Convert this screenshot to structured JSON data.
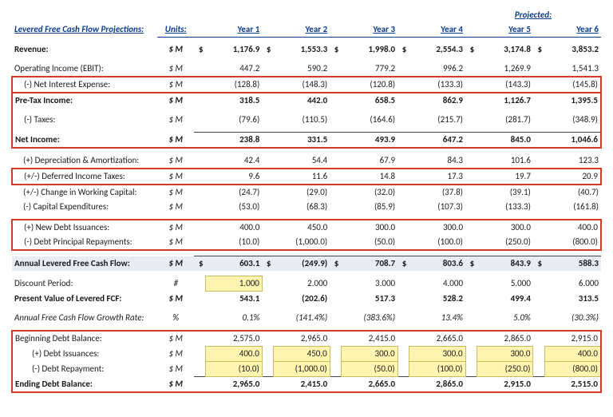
{
  "header": {
    "title": "Levered Free Cash Flow Projections:",
    "units_label": "Units:",
    "projected_label": "Projected:",
    "years": [
      "Year 1",
      "Year 2",
      "Year 3",
      "Year 4",
      "Year 5",
      "Year 6"
    ]
  },
  "rows": {
    "revenue": {
      "label": "Revenue:",
      "units": "$ M",
      "v": [
        "1,176.9",
        "1,553.3",
        "1,998.0",
        "2,554.3",
        "3,174.8",
        "3,853.2"
      ]
    },
    "ebit": {
      "label": "Operating Income (EBIT):",
      "units": "$ M",
      "v": [
        "447.2",
        "590.2",
        "779.2",
        "996.2",
        "1,269.9",
        "1,541.3"
      ]
    },
    "intexp": {
      "label": "(-) Net Interest Expense:",
      "units": "$ M",
      "v": [
        "(128.8)",
        "(148.3)",
        "(120.8)",
        "(133.3)",
        "(143.3)",
        "(145.8)"
      ]
    },
    "pretax": {
      "label": "Pre-Tax Income:",
      "units": "$ M",
      "v": [
        "318.5",
        "442.0",
        "658.5",
        "862.9",
        "1,126.7",
        "1,395.5"
      ]
    },
    "taxes": {
      "label": "(-) Taxes:",
      "units": "$ M",
      "v": [
        "(79.6)",
        "(110.5)",
        "(164.6)",
        "(215.7)",
        "(281.7)",
        "(348.9)"
      ]
    },
    "netinc": {
      "label": "Net Income:",
      "units": "$ M",
      "v": [
        "238.8",
        "331.5",
        "493.9",
        "647.2",
        "845.0",
        "1,046.6"
      ]
    },
    "da": {
      "label": "(+) Depreciation & Amortization:",
      "units": "$ M",
      "v": [
        "42.4",
        "54.4",
        "67.9",
        "84.3",
        "101.6",
        "123.3"
      ]
    },
    "deftax": {
      "label": "(+/-) Deferred Income Taxes:",
      "units": "$ M",
      "v": [
        "9.6",
        "11.6",
        "14.8",
        "17.3",
        "19.7",
        "20.9"
      ]
    },
    "wc": {
      "label": "(+/-) Change in Working Capital:",
      "units": "$ M",
      "v": [
        "(24.7)",
        "(29.0)",
        "(32.0)",
        "(37.8)",
        "(39.1)",
        "(40.7)"
      ]
    },
    "capex": {
      "label": "(-) Capital Expenditures:",
      "units": "$ M",
      "v": [
        "(53.0)",
        "(68.3)",
        "(85.9)",
        "(107.3)",
        "(133.3)",
        "(161.8)"
      ]
    },
    "newdebt": {
      "label": "(+) New Debt Issuances:",
      "units": "$ M",
      "v": [
        "400.0",
        "450.0",
        "300.0",
        "300.0",
        "300.0",
        "400.0"
      ]
    },
    "repay": {
      "label": "(-) Debt Principal Repayments:",
      "units": "$ M",
      "v": [
        "(10.0)",
        "(1,000.0)",
        "(50.0)",
        "(100.0)",
        "(250.0)",
        "(800.0)"
      ]
    },
    "lfcf": {
      "label": "Annual Levered Free Cash Flow:",
      "units": "$ M",
      "v": [
        "603.1",
        "(249.9)",
        "708.7",
        "803.6",
        "843.9",
        "588.3"
      ]
    },
    "discp": {
      "label": "Discount Period:",
      "units": "#",
      "v": [
        "1.000",
        "2.000",
        "3.000",
        "4.000",
        "5.000",
        "6.000"
      ]
    },
    "pvfcf": {
      "label": "Present Value of Levered FCF:",
      "units": "$ M",
      "v": [
        "543.1",
        "(202.6)",
        "517.3",
        "528.2",
        "499.4",
        "313.5"
      ]
    },
    "growth": {
      "label": "Annual Free Cash Flow Growth Rate:",
      "units": "%",
      "v": [
        "0.1%",
        "(141.4%)",
        "(383.6%)",
        "13.4%",
        "5.0%",
        "(30.3%)"
      ]
    },
    "begdebt": {
      "label": "Beginning Debt Balance:",
      "units": "$ M",
      "v": [
        "2,575.0",
        "2,965.0",
        "2,415.0",
        "2,665.0",
        "2,865.0",
        "2,915.0"
      ]
    },
    "debtiss": {
      "label": "(+) Debt Issuances:",
      "units": "$ M",
      "v": [
        "400.0",
        "450.0",
        "300.0",
        "300.0",
        "300.0",
        "400.0"
      ]
    },
    "debtrep": {
      "label": "(-) Debt Repayment:",
      "units": "$ M",
      "v": [
        "(10.0)",
        "(1,000.0)",
        "(50.0)",
        "(100.0)",
        "(250.0)",
        "(800.0)"
      ]
    },
    "enddebt": {
      "label": "Ending Debt Balance:",
      "units": "$ M",
      "v": [
        "2,965.0",
        "2,415.0",
        "2,665.0",
        "2,865.0",
        "2,915.0",
        "2,515.0"
      ]
    }
  },
  "style": {
    "accent": "#0a3a8a",
    "highlight_border": "#d23a2a",
    "input_fill": "#fff4b0",
    "shaded_fill": "#e7ecf5"
  }
}
